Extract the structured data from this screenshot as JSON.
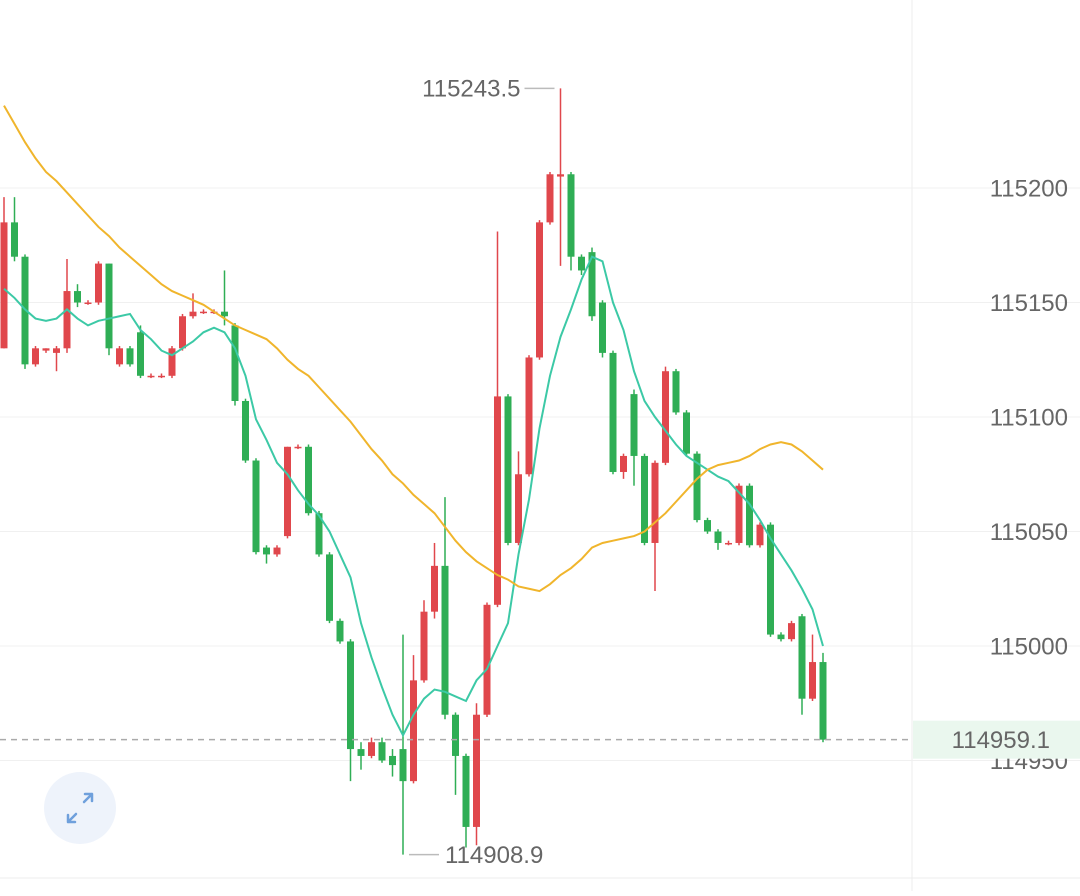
{
  "chart_data": {
    "type": "candlestick",
    "open": [
      115130,
      115185,
      115170,
      115123,
      115129,
      115128,
      115130,
      115155,
      115150,
      115150,
      115167,
      115123,
      115130,
      115137,
      115118,
      115118,
      115118,
      115130,
      115144,
      115146,
      115146,
      115146,
      115140,
      115107,
      115081,
      115043,
      115040,
      115048,
      115087,
      115087,
      115058,
      115040,
      115011,
      115002,
      114955,
      114952,
      114958,
      114952,
      114955,
      114941,
      114985,
      115015,
      115035,
      114970,
      114952,
      114921,
      114970,
      115018,
      115109,
      115045,
      115075,
      115126,
      115185,
      115205,
      115206,
      115170,
      115172,
      115150,
      115128,
      115076,
      115110,
      115083,
      115045,
      115080,
      115120,
      115102,
      115084,
      115055,
      115050,
      115045,
      115045,
      115070,
      115044,
      115053,
      115005,
      115003,
      115013,
      114977,
      114993
    ],
    "high": [
      115196,
      115196,
      115171,
      115131,
      115130,
      115131,
      115169,
      115158,
      115151,
      115168,
      115167,
      115131,
      115131,
      115140,
      115119,
      115119,
      115131,
      115145,
      115154,
      115147,
      115147,
      115164,
      115141,
      115108,
      115082,
      115044,
      115044,
      115087,
      115088,
      115088,
      115059,
      115041,
      115012,
      115003,
      114958,
      114960,
      114960,
      114955,
      115005,
      114996,
      115020,
      115045,
      115065,
      114971,
      114953,
      114975,
      115019,
      115181,
      115110,
      115085,
      115127,
      115186,
      115207,
      115243.5,
      115207,
      115171,
      115174,
      115151,
      115129,
      115084,
      115112,
      115084,
      115081,
      115122,
      115121,
      115103,
      115085,
      115056,
      115051,
      115046,
      115071,
      115071,
      115054,
      115054,
      115006,
      115011,
      115014,
      115005,
      114997
    ],
    "low": [
      115130,
      115168,
      115121,
      115122,
      115128,
      115120,
      115128,
      115148,
      115149,
      115149,
      115127,
      115122,
      115122,
      115117,
      115117,
      115117,
      115117,
      115129,
      115143,
      115145,
      115145,
      115140,
      115105,
      115080,
      115040,
      115036,
      115039,
      115047,
      115086,
      115057,
      115039,
      115010,
      115001,
      114941,
      114946,
      114951,
      114949,
      114943,
      114908.9,
      114940,
      114984,
      115012,
      114968,
      114935,
      114912,
      114913,
      114969,
      115017,
      115044,
      115044,
      115074,
      115125,
      115184,
      115166,
      115164,
      115162,
      115142,
      115126,
      115075,
      115073,
      115070,
      115044,
      115024,
      115079,
      115101,
      115083,
      115054,
      115049,
      115042,
      115044,
      115044,
      115043,
      115043,
      115004,
      115002,
      115002,
      114970,
      114976,
      114958
    ],
    "close": [
      115185,
      115170,
      115123,
      115130,
      115130,
      115130,
      115155,
      115150,
      115150,
      115167,
      115130,
      115130,
      115123,
      115118,
      115118,
      115118,
      115130,
      115144,
      115146,
      115146,
      115146,
      115144,
      115107,
      115081,
      115041,
      115040,
      115043,
      115087,
      115087,
      115058,
      115040,
      115011,
      115002,
      114955,
      114952,
      114958,
      114950,
      114948,
      114941,
      114985,
      115015,
      115035,
      114970,
      114952,
      114921,
      114970,
      115018,
      115109,
      115045,
      115075,
      115126,
      115185,
      115206,
      115206,
      115170,
      115164,
      115144,
      115128,
      115076,
      115083,
      115083,
      115045,
      115080,
      115120,
      115102,
      115084,
      115055,
      115050,
      115045,
      115045,
      115070,
      115044,
      115053,
      115005,
      115003,
      115010,
      114977,
      114993,
      114959.1
    ],
    "up_color": "#e0474c",
    "down_color": "#2fae55",
    "ma_lines": [
      {
        "color": "#3cc9a6",
        "values": [
          115156,
          115152,
          115147,
          115143,
          115142,
          115143,
          115147,
          115143,
          115140,
          115142,
          115143,
          115144,
          115145,
          115138,
          115134,
          115129,
          115127,
          115130,
          115133,
          115137,
          115139,
          115137,
          115130,
          115118,
          115099,
          115090,
          115080,
          115075,
          115068,
          115062,
          115057,
          115050,
          115040,
          115030,
          115010,
          114995,
          114982,
          114970,
          114961,
          114970,
          114977,
          114981,
          114980,
          114978,
          114976,
          114985,
          114990,
          115000,
          115010,
          115040,
          115064,
          115095,
          115118,
          115135,
          115147,
          115160,
          115170,
          115168,
          115150,
          115138,
          115120,
          115107,
          115100,
          115094,
          115088,
          115083,
          115080,
          115077,
          115074,
          115072,
          115067,
          115062,
          115055,
          115047,
          115040,
          115033,
          115025,
          115016,
          115000
        ]
      },
      {
        "color": "#f0b52c",
        "values": [
          115236,
          115228,
          115220,
          115213,
          115207,
          115203,
          115198,
          115193,
          115188,
          115183,
          115179,
          115174,
          115170,
          115166,
          115162,
          115158,
          115155,
          115153,
          115151,
          115149,
          115146,
          115143,
          115140,
          115138,
          115136,
          115134,
          115130,
          115125,
          115121,
          115118,
          115113,
          115108,
          115103,
          115098,
          115092,
          115086,
          115081,
          115075,
          115071,
          115066,
          115062,
          115058,
          115052,
          115046,
          115041,
          115037,
          115034,
          115031,
          115029,
          115026,
          115025,
          115024,
          115027,
          115031,
          115034,
          115038,
          115043,
          115045,
          115046,
          115047,
          115048,
          115050,
          115054,
          115058,
          115063,
          115068,
          115073,
          115077,
          115079,
          115080,
          115081,
          115083,
          115086,
          115088,
          115089,
          115088,
          115085,
          115081,
          115077
        ]
      }
    ],
    "ylim": [
      114898.7,
      115282.1
    ],
    "yticks": [
      114950,
      115000,
      115050,
      115100,
      115150,
      115200
    ],
    "grid": true
  }
}
